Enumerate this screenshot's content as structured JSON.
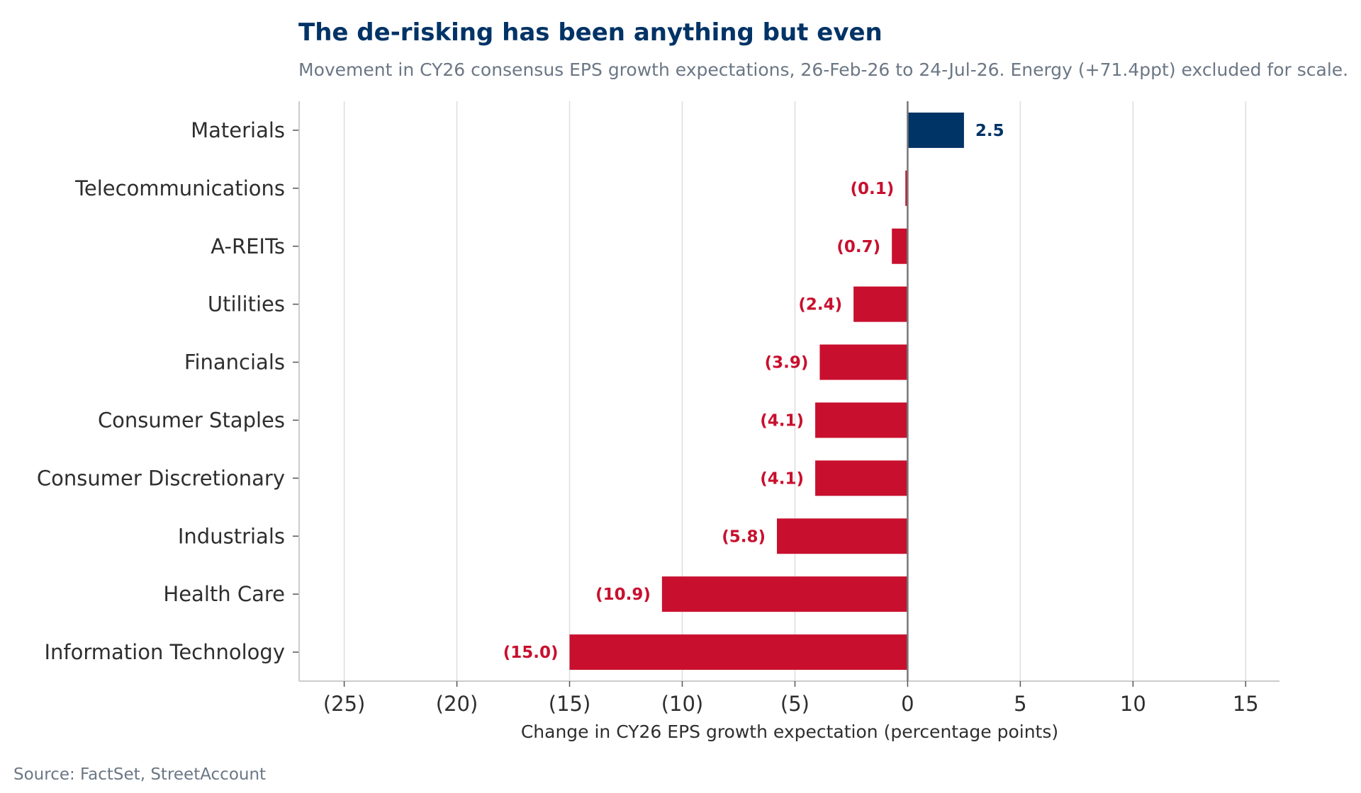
{
  "title": "The de-risking has been anything but even",
  "subtitle": "Movement in CY26 consensus EPS growth expectations, 26-Feb-26 to 24-Jul-26. Energy (+71.4ppt) excluded for scale.",
  "source": "Source: FactSet, StreetAccount",
  "colors": {
    "positive": "#003366",
    "negative": "#c8102e",
    "grid": "#dddddd",
    "axis": "#cccccc",
    "zero_line": "#777777",
    "text": "#2e2e2e",
    "muted": "#6b7785"
  },
  "chart_data": {
    "type": "bar",
    "orientation": "horizontal",
    "categories": [
      "Materials",
      "Telecommunications",
      "A-REITs",
      "Utilities",
      "Financials",
      "Consumer Staples",
      "Consumer Discretionary",
      "Industrials",
      "Health Care",
      "Information Technology"
    ],
    "values": [
      2.5,
      -0.1,
      -0.7,
      -2.4,
      -3.9,
      -4.1,
      -4.1,
      -5.8,
      -10.9,
      -15.0
    ],
    "value_labels": [
      "2.5",
      "(0.1)",
      "(0.7)",
      "(2.4)",
      "(3.9)",
      "(4.1)",
      "(4.1)",
      "(5.8)",
      "(10.9)",
      "(15.0)"
    ],
    "xlabel": "Change in CY26 EPS growth expectation (percentage points)",
    "ylabel": "",
    "xlim": [
      -27,
      16.5
    ],
    "xticks": [
      -25,
      -20,
      -15,
      -10,
      -5,
      0,
      5,
      10,
      15
    ],
    "xtick_labels": [
      "(25)",
      "(20)",
      "(15)",
      "(10)",
      "(5)",
      "0",
      "5",
      "10",
      "15"
    ],
    "grid": "vertical",
    "legend": "none"
  }
}
